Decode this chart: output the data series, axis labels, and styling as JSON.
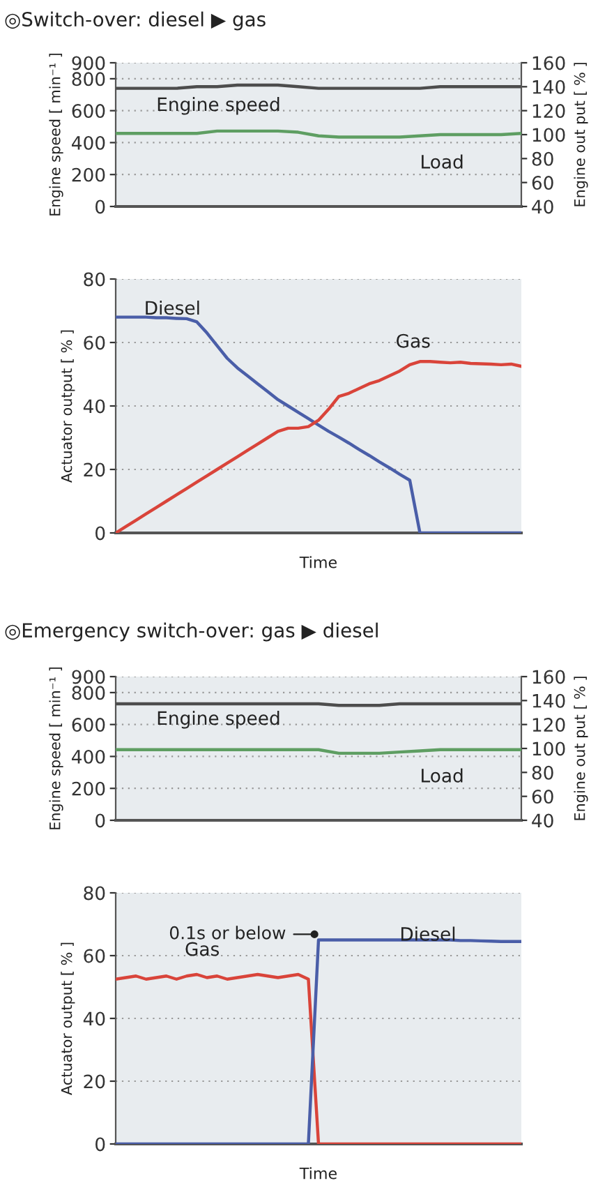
{
  "chart_data": [
    {
      "type": "line",
      "title": "◎Switch-over: diesel ▶ gas",
      "ylabel": "Engine speed [ min⁻¹ ]",
      "y2label": "Engine out put [ % ]",
      "categories": [
        null,
        null,
        null,
        null,
        null,
        null,
        null,
        null,
        null,
        null,
        null,
        null,
        null,
        null,
        null,
        null,
        null,
        null,
        null,
        null,
        null
      ],
      "series": [
        {
          "name": "Engine speed",
          "color": "#4d4d4d",
          "values": [
            740,
            740,
            740,
            740,
            750,
            750,
            760,
            760,
            760,
            750,
            740,
            740,
            740,
            740,
            740,
            740,
            750,
            750,
            750,
            750,
            750
          ]
        },
        {
          "name": "Load",
          "color": "#5e9e62",
          "axis": "y2",
          "values": [
            101,
            101,
            101,
            101,
            101,
            103,
            103,
            103,
            103,
            102,
            99,
            98,
            98,
            98,
            98,
            99,
            100,
            100,
            100,
            100,
            101
          ]
        }
      ],
      "ylim": [
        0,
        900
      ],
      "yticks": [
        0,
        200,
        400,
        600,
        800,
        900
      ],
      "y2lim": [
        40,
        160
      ],
      "y2ticks": [
        40,
        60,
        80,
        100,
        120,
        140,
        160
      ],
      "grid": "y",
      "tick_labels": "y"
    },
    {
      "type": "line",
      "xlabel": "Time",
      "ylabel": "Actuator output [ % ]",
      "categories": [
        null,
        null,
        null,
        null,
        null,
        null,
        null,
        null,
        null,
        null,
        null,
        null,
        null,
        null,
        null,
        null,
        null,
        null,
        null,
        null,
        null,
        null,
        null,
        null,
        null,
        null,
        null,
        null,
        null,
        null,
        null,
        null,
        null,
        null,
        null,
        null,
        null,
        null,
        null,
        null,
        null
      ],
      "series": [
        {
          "name": "Diesel",
          "color": "#4a5ea8",
          "values": [
            68,
            68,
            68,
            68,
            67.8,
            67.8,
            67.6,
            67.5,
            66.5,
            63,
            59,
            55,
            52,
            49.5,
            47,
            44.5,
            42,
            40,
            38,
            36,
            34,
            32,
            30.2,
            28.3,
            26.3,
            24.4,
            22.4,
            20.5,
            18.5,
            16.6,
            0,
            0,
            0,
            0,
            0,
            0,
            0,
            0,
            0,
            0,
            0
          ]
        },
        {
          "name": "Gas",
          "color": "#d9443a",
          "values": [
            0,
            2,
            4,
            6,
            8,
            10,
            12,
            14,
            16,
            18,
            20,
            22,
            24,
            26,
            28,
            30,
            32,
            33,
            33,
            33.5,
            35.5,
            39,
            43,
            44,
            45.5,
            47,
            48,
            49.5,
            51,
            53,
            54,
            54,
            53.8,
            53.6,
            53.8,
            53.4,
            53.3,
            53.2,
            53,
            53.2,
            52.5
          ]
        }
      ],
      "ylim": [
        0,
        80
      ],
      "yticks": [
        0,
        20,
        40,
        60,
        80
      ],
      "grid": "y",
      "tick_labels": "y"
    },
    {
      "type": "line",
      "title": "◎Emergency switch-over: gas ▶ diesel",
      "ylabel": "Engine speed [ min⁻¹ ]",
      "y2label": "Engine out put [ % ]",
      "categories": [
        null,
        null,
        null,
        null,
        null,
        null,
        null,
        null,
        null,
        null,
        null,
        null,
        null,
        null,
        null,
        null,
        null,
        null,
        null,
        null,
        null
      ],
      "series": [
        {
          "name": "Engine speed",
          "color": "#4d4d4d",
          "values": [
            730,
            730,
            730,
            730,
            730,
            730,
            730,
            730,
            730,
            730,
            730,
            720,
            720,
            720,
            730,
            730,
            730,
            730,
            730,
            730,
            730
          ]
        },
        {
          "name": "Load",
          "color": "#5e9e62",
          "axis": "y2",
          "values": [
            99,
            99,
            99,
            99,
            99,
            99,
            99,
            99,
            99,
            99,
            99,
            96,
            96,
            96,
            97,
            98,
            99,
            99,
            99,
            99,
            99
          ]
        }
      ],
      "ylim": [
        0,
        900
      ],
      "yticks": [
        0,
        200,
        400,
        600,
        800,
        900
      ],
      "y2lim": [
        40,
        160
      ],
      "y2ticks": [
        40,
        60,
        80,
        100,
        120,
        140,
        160
      ],
      "grid": "y",
      "tick_labels": "y"
    },
    {
      "type": "line",
      "xlabel": "Time",
      "ylabel": "Actuator output [ % ]",
      "categories": [
        null,
        null,
        null,
        null,
        null,
        null,
        null,
        null,
        null,
        null,
        null,
        null,
        null,
        null,
        null,
        null,
        null,
        null,
        null,
        null,
        null,
        null,
        null,
        null,
        null,
        null,
        null,
        null,
        null,
        null,
        null,
        null,
        null,
        null,
        null,
        null,
        null,
        null,
        null,
        null,
        null
      ],
      "series": [
        {
          "name": "Gas",
          "color": "#d9443a",
          "values": [
            52.5,
            53,
            53.5,
            52.5,
            53,
            53.5,
            52.5,
            53.5,
            54,
            53,
            53.5,
            52.5,
            53,
            53.5,
            54,
            53.5,
            53,
            53.5,
            54,
            52.5,
            0,
            0,
            0,
            0,
            0,
            0,
            0,
            0,
            0,
            0,
            0,
            0,
            0,
            0,
            0,
            0,
            0,
            0,
            0,
            0,
            0
          ]
        },
        {
          "name": "Diesel",
          "color": "#4a5ea8",
          "values": [
            0,
            0,
            0,
            0,
            0,
            0,
            0,
            0,
            0,
            0,
            0,
            0,
            0,
            0,
            0,
            0,
            0,
            0,
            0,
            0,
            65,
            65,
            65,
            65,
            65,
            65,
            65,
            65,
            65,
            65,
            65,
            65,
            65,
            65,
            64.8,
            64.8,
            64.7,
            64.6,
            64.5,
            64.5,
            64.5
          ]
        }
      ],
      "annotations": [
        "0.1s or below"
      ],
      "ylim": [
        0,
        80
      ],
      "yticks": [
        0,
        20,
        40,
        60,
        80
      ],
      "grid": "y",
      "tick_labels": "y"
    }
  ]
}
